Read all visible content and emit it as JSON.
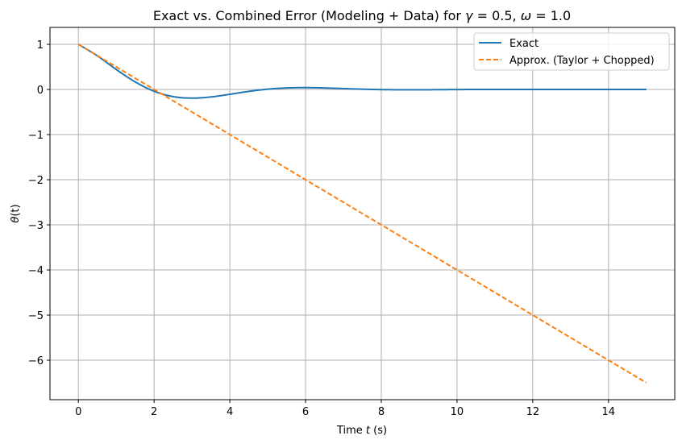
{
  "chart_data": {
    "type": "line",
    "title": "Exact vs. Combined Error (Modeling + Data) for γ = 0.5, ω = 1.0",
    "title_parts": {
      "prefix": "Exact vs. Combined Error (Modeling + Data) for ",
      "gamma_symbol": "γ",
      "gamma_eq": " = 0.5, ",
      "omega_symbol": "ω",
      "omega_eq": " = 1.0"
    },
    "xlabel": "Time t (s)",
    "xlabel_parts": {
      "prefix": "Time ",
      "var": "t",
      "suffix": " (s)"
    },
    "ylabel": "θ(t)",
    "ylabel_parts": {
      "var": "θ",
      "rest": "(t)"
    },
    "xlim": [
      -0.75,
      15.75
    ],
    "ylim": [
      -6.875,
      1.375
    ],
    "xticks": [
      0,
      2,
      4,
      6,
      8,
      10,
      12,
      14
    ],
    "xtick_labels": [
      "0",
      "2",
      "4",
      "6",
      "8",
      "10",
      "12",
      "14"
    ],
    "yticks": [
      1,
      0,
      -1,
      -2,
      -3,
      -4,
      -5,
      -6
    ],
    "ytick_labels": [
      "1",
      "0",
      "−1",
      "−2",
      "−3",
      "−4",
      "−5",
      "−6"
    ],
    "grid": true,
    "legend_position": "top-right",
    "series": [
      {
        "name": "Exact",
        "color": "#1f77b4",
        "style": "solid",
        "x": [
          0,
          0.5,
          1,
          1.5,
          2,
          2.5,
          3,
          3.5,
          4,
          4.5,
          5,
          5.5,
          6,
          6.5,
          7,
          7.5,
          8,
          8.5,
          9,
          9.5,
          10,
          10.5,
          11,
          11.5,
          12,
          12.5,
          13,
          13.5,
          14,
          14.5,
          15
        ],
        "y": [
          1.0,
          0.745,
          0.443,
          0.167,
          -0.04,
          -0.158,
          -0.193,
          -0.166,
          -0.107,
          -0.043,
          0.006,
          0.033,
          0.04,
          0.033,
          0.019,
          0.006,
          -0.003,
          -0.007,
          -0.007,
          -0.005,
          -0.002,
          0.0,
          0.001,
          0.001,
          0.001,
          0.001,
          0.0,
          0.0,
          0.0,
          0.0,
          0.0
        ]
      },
      {
        "name": "Approx. (Taylor + Chopped)",
        "color": "#ff7f0e",
        "style": "dashed",
        "x": [
          0,
          15
        ],
        "y": [
          1.0,
          -6.5
        ]
      }
    ]
  }
}
